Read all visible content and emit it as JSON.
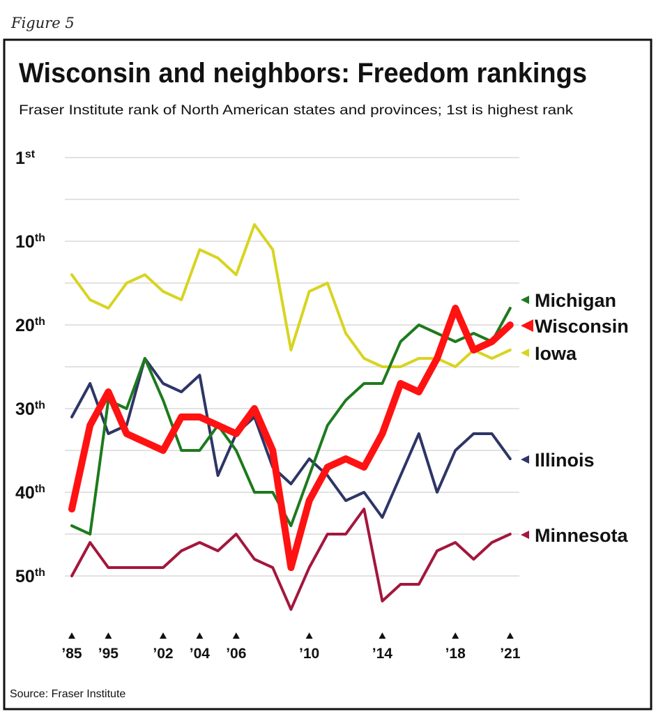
{
  "figure_label": "Figure 5",
  "source": "Source: Fraser Institute",
  "chart_data": {
    "type": "line",
    "title": "Wisconsin and neighbors: Freedom rankings",
    "subtitle": "Fraser Institute rank of North American states and provinces; 1st is highest rank",
    "xlabel": "",
    "ylabel": "",
    "y_inverted": true,
    "ylim": [
      0,
      55
    ],
    "grid": true,
    "legend_placement": "right (end of lines)",
    "x": [
      1985,
      1990,
      1995,
      2000,
      2001,
      2002,
      2003,
      2004,
      2005,
      2006,
      2007,
      2008,
      2009,
      2010,
      2011,
      2012,
      2013,
      2014,
      2015,
      2016,
      2017,
      2018,
      2019,
      2020,
      2021
    ],
    "y_ticks": [
      1,
      10,
      20,
      30,
      40,
      50
    ],
    "y_tick_labels": [
      "1st",
      "10th",
      "20th",
      "30th",
      "40th",
      "50th"
    ],
    "x_ticks": [
      1985,
      1995,
      2002,
      2004,
      2006,
      2010,
      2014,
      2018,
      2021
    ],
    "x_tick_labels": [
      "’85",
      "’95",
      "’02",
      "’04",
      "’06",
      "’10",
      "’14",
      "’18",
      "’21"
    ],
    "series": [
      {
        "name": "Michigan",
        "color": "#1d7a1d",
        "width": 4,
        "values": [
          44,
          45,
          29,
          30,
          24,
          29,
          35,
          35,
          32,
          35,
          40,
          40,
          44,
          38,
          32,
          29,
          27,
          27,
          22,
          20,
          21,
          22,
          21,
          22,
          18
        ]
      },
      {
        "name": "Wisconsin",
        "color": "#ff1212",
        "width": 10,
        "values": [
          42,
          32,
          28,
          33,
          34,
          35,
          31,
          31,
          32,
          33,
          30,
          35,
          49,
          41,
          37,
          36,
          37,
          33,
          27,
          28,
          24,
          18,
          23,
          22,
          20
        ]
      },
      {
        "name": "Iowa",
        "color": "#d8d421",
        "width": 4,
        "values": [
          14,
          17,
          18,
          15,
          14,
          16,
          17,
          11,
          12,
          14,
          8,
          11,
          23,
          16,
          15,
          21,
          24,
          25,
          25,
          24,
          24,
          25,
          23,
          24,
          23
        ]
      },
      {
        "name": "Illinois",
        "color": "#2e3566",
        "width": 4,
        "values": [
          31,
          27,
          33,
          32,
          24,
          27,
          28,
          26,
          38,
          33,
          31,
          37,
          39,
          36,
          38,
          41,
          40,
          43,
          38,
          33,
          40,
          35,
          33,
          33,
          36
        ]
      },
      {
        "name": "Minnesota",
        "color": "#a3173c",
        "width": 4,
        "values": [
          50,
          46,
          49,
          49,
          49,
          49,
          47,
          46,
          47,
          45,
          48,
          49,
          54,
          49,
          45,
          45,
          42,
          53,
          51,
          51,
          47,
          46,
          48,
          46,
          45
        ]
      }
    ]
  }
}
